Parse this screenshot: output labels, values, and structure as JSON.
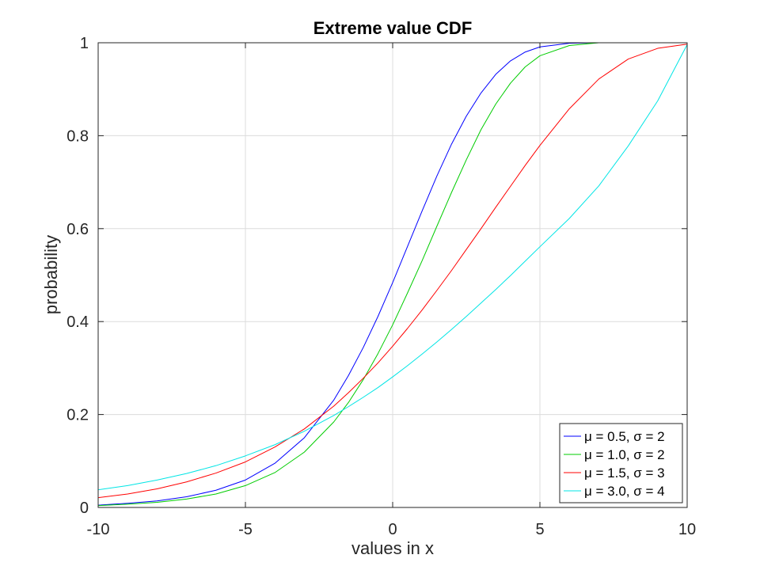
{
  "chart_data": {
    "type": "line",
    "title": "Extreme value CDF",
    "xlabel": "values in x",
    "ylabel": "probability",
    "xlim": [
      -10,
      10
    ],
    "ylim": [
      0,
      1
    ],
    "xticks": [
      -10,
      -5,
      0,
      5,
      10
    ],
    "xtick_labels": [
      "-10",
      "-5",
      "0",
      "5",
      "10"
    ],
    "yticks": [
      0,
      0.2,
      0.4,
      0.6,
      0.8,
      1
    ],
    "ytick_labels": [
      "0",
      "0.2",
      "0.4",
      "0.6",
      "0.8",
      "1"
    ],
    "grid": true,
    "legend_position": "bottom-right",
    "x": [
      -10,
      -9,
      -8,
      -7,
      -6,
      -5,
      -4,
      -3,
      -2,
      -1.5,
      -1,
      -0.5,
      0,
      0.5,
      1,
      1.5,
      2,
      2.5,
      3,
      3.5,
      4,
      4.5,
      5,
      6,
      7,
      8,
      9,
      10
    ],
    "series": [
      {
        "name": "μ = 0.5, σ = 2",
        "color": "#0000ff",
        "values": [
          0.005,
          0.009,
          0.014,
          0.023,
          0.037,
          0.059,
          0.095,
          0.15,
          0.231,
          0.284,
          0.344,
          0.411,
          0.484,
          0.561,
          0.638,
          0.713,
          0.782,
          0.842,
          0.892,
          0.932,
          0.961,
          0.98,
          0.991,
          0.999,
          1.0,
          1.0,
          1.0,
          1.0
        ]
      },
      {
        "name": "μ = 1.0, σ = 2",
        "color": "#00cc00",
        "values": [
          0.004,
          0.007,
          0.011,
          0.018,
          0.029,
          0.047,
          0.075,
          0.119,
          0.184,
          0.226,
          0.275,
          0.331,
          0.393,
          0.461,
          0.531,
          0.605,
          0.678,
          0.748,
          0.813,
          0.868,
          0.913,
          0.948,
          0.972,
          0.994,
          1.0,
          1.0,
          1.0,
          1.0
        ]
      },
      {
        "name": "μ = 1.5, σ = 3",
        "color": "#ff0000",
        "values": [
          0.021,
          0.029,
          0.04,
          0.055,
          0.074,
          0.098,
          0.13,
          0.169,
          0.218,
          0.247,
          0.278,
          0.311,
          0.347,
          0.385,
          0.425,
          0.467,
          0.51,
          0.555,
          0.6,
          0.646,
          0.691,
          0.736,
          0.779,
          0.858,
          0.922,
          0.965,
          0.988,
          0.997
        ]
      },
      {
        "name": "μ = 3.0, σ = 4",
        "color": "#00e5e5",
        "values": [
          0.038,
          0.047,
          0.059,
          0.073,
          0.09,
          0.111,
          0.135,
          0.164,
          0.198,
          0.217,
          0.237,
          0.258,
          0.281,
          0.305,
          0.33,
          0.356,
          0.383,
          0.411,
          0.44,
          0.469,
          0.499,
          0.53,
          0.561,
          0.622,
          0.692,
          0.778,
          0.875,
          0.996
        ]
      }
    ]
  }
}
